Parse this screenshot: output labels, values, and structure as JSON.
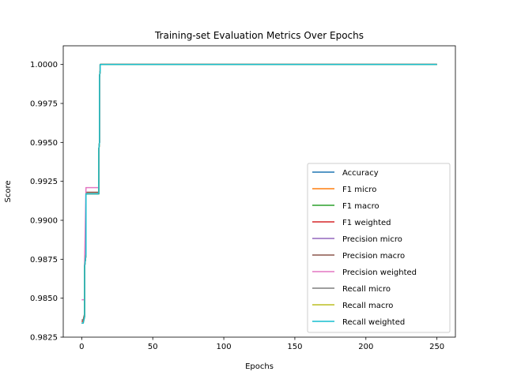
{
  "chart_data": {
    "type": "line",
    "title": "Training-set Evaluation Metrics Over Epochs",
    "xlabel": "Epochs",
    "ylabel": "Score",
    "xlim": [
      -13,
      263
    ],
    "ylim": [
      0.9825,
      1.0012
    ],
    "xticks": [
      0,
      50,
      100,
      150,
      200,
      250
    ],
    "yticks": [
      0.9825,
      0.985,
      0.9875,
      0.99,
      0.9925,
      0.995,
      0.9975,
      1.0
    ],
    "ytick_labels": [
      "0.9825",
      "0.9850",
      "0.9875",
      "0.9900",
      "0.9925",
      "0.9950",
      "0.9975",
      "1.0000"
    ],
    "grid": false,
    "legend_position": "lower-right",
    "series": [
      {
        "name": "Accuracy",
        "color": "#1f77b4",
        "x": [
          0,
          1,
          1,
          2,
          2,
          3,
          3,
          12,
          12,
          12.5,
          12.5,
          13,
          13,
          250
        ],
        "y": [
          0.9834,
          0.9834,
          0.9834,
          0.9838,
          0.987,
          0.9878,
          0.9917,
          0.9917,
          0.9945,
          0.995,
          0.9992,
          0.9996,
          1.0,
          1.0
        ]
      },
      {
        "name": "F1 micro",
        "color": "#ff7f0e",
        "x": [
          0,
          1,
          1,
          2,
          2,
          3,
          3,
          12,
          12,
          12.5,
          12.5,
          13,
          13,
          250
        ],
        "y": [
          0.9834,
          0.9834,
          0.9834,
          0.9838,
          0.987,
          0.9878,
          0.9917,
          0.9917,
          0.9945,
          0.995,
          0.9992,
          0.9996,
          1.0,
          1.0
        ]
      },
      {
        "name": "F1 macro",
        "color": "#2ca02c",
        "x": [
          0,
          1,
          1,
          2,
          2,
          3,
          3,
          12,
          12,
          12.5,
          12.5,
          13,
          13,
          250
        ],
        "y": [
          0.9835,
          0.9835,
          0.9835,
          0.9839,
          0.987,
          0.9878,
          0.9917,
          0.9917,
          0.9945,
          0.995,
          0.9992,
          0.9996,
          1.0,
          1.0
        ]
      },
      {
        "name": "F1 weighted",
        "color": "#d62728",
        "x": [
          0,
          1,
          1,
          2,
          2,
          3,
          3,
          12,
          12,
          12.5,
          12.5,
          13,
          13,
          250
        ],
        "y": [
          0.9835,
          0.9835,
          0.9835,
          0.9839,
          0.987,
          0.9878,
          0.9917,
          0.9917,
          0.9945,
          0.995,
          0.9992,
          0.9996,
          1.0,
          1.0
        ]
      },
      {
        "name": "Precision micro",
        "color": "#9467bd",
        "x": [
          0,
          1,
          1,
          2,
          2,
          3,
          3,
          12,
          12,
          12.5,
          12.5,
          13,
          13,
          250
        ],
        "y": [
          0.9834,
          0.9834,
          0.9834,
          0.9838,
          0.987,
          0.9878,
          0.9917,
          0.9917,
          0.9945,
          0.995,
          0.9992,
          0.9996,
          1.0,
          1.0
        ]
      },
      {
        "name": "Precision macro",
        "color": "#8c564b",
        "x": [
          0,
          1,
          1,
          2,
          2,
          3,
          3,
          12,
          12,
          12.5,
          12.5,
          13,
          13,
          250
        ],
        "y": [
          0.9836,
          0.9836,
          0.9836,
          0.984,
          0.9871,
          0.9879,
          0.9918,
          0.9918,
          0.9945,
          0.995,
          0.9992,
          0.9996,
          1.0,
          1.0
        ]
      },
      {
        "name": "Precision weighted",
        "color": "#e377c2",
        "x": [
          0,
          1,
          1,
          2,
          2,
          3,
          3,
          12,
          12,
          12.5,
          12.5,
          13,
          13,
          250
        ],
        "y": [
          0.9849,
          0.9849,
          0.9849,
          0.9849,
          0.9871,
          0.9921,
          0.9921,
          0.9921,
          0.9945,
          0.995,
          0.9992,
          0.9996,
          1.0,
          1.0
        ]
      },
      {
        "name": "Recall micro",
        "color": "#7f7f7f",
        "x": [
          0,
          1,
          1,
          2,
          2,
          3,
          3,
          12,
          12,
          12.5,
          12.5,
          13,
          13,
          250
        ],
        "y": [
          0.9834,
          0.9834,
          0.9834,
          0.9838,
          0.987,
          0.9878,
          0.9917,
          0.9917,
          0.9945,
          0.995,
          0.9992,
          0.9996,
          1.0,
          1.0
        ]
      },
      {
        "name": "Recall macro",
        "color": "#bcbd22",
        "x": [
          0,
          1,
          1,
          2,
          2,
          3,
          3,
          12,
          12,
          12.5,
          12.5,
          13,
          13,
          250
        ],
        "y": [
          0.9834,
          0.9834,
          0.9834,
          0.9838,
          0.987,
          0.9878,
          0.9917,
          0.9917,
          0.9945,
          0.995,
          0.9992,
          0.9996,
          1.0,
          1.0
        ]
      },
      {
        "name": "Recall weighted",
        "color": "#17becf",
        "x": [
          0,
          1,
          1,
          2,
          2,
          3,
          3,
          12,
          12,
          12.5,
          12.5,
          13,
          13,
          250
        ],
        "y": [
          0.9834,
          0.9834,
          0.9834,
          0.9838,
          0.987,
          0.9878,
          0.9917,
          0.9917,
          0.9945,
          0.995,
          0.9992,
          0.9996,
          1.0,
          1.0
        ]
      }
    ]
  }
}
